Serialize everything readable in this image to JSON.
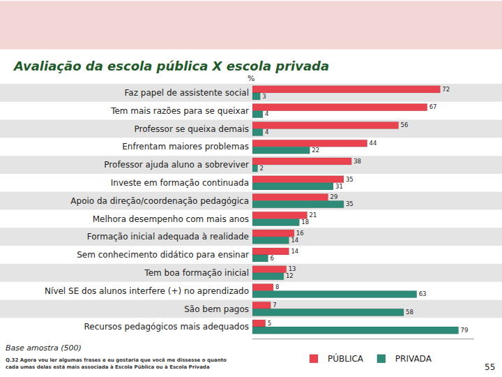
{
  "chart_data": {
    "type": "bar",
    "title": "Avaliação da escola pública X escola privada",
    "unit_label": "%",
    "orientation": "horizontal",
    "data_labels": true,
    "tick_labels": "y",
    "grid": false,
    "legend": "bottom",
    "xlim": [
      0,
      85
    ],
    "xticks": [],
    "categories": [
      "Faz papel de assistente social",
      "Tem mais razões para se queixar",
      "Professor se queixa demais",
      "Enfrentam maiores problemas",
      "Professor ajuda aluno a sobreviver",
      "Investe em formação continuada",
      "Apoio da direção/coordenação pedagógica",
      "Melhora desempenho com mais anos",
      "Formação inicial adequada à realidade",
      "Sem conhecimento didático para ensinar",
      "Tem boa formação inicial",
      "Nível SE dos alunos interfere (+) no aprendizado",
      "São bem pagos",
      "Recursos pedagógicos mais adequados"
    ],
    "series": [
      {
        "name": "PÚBLICA",
        "color": "#e8434f",
        "values": [
          72,
          67,
          56,
          44,
          38,
          35,
          29,
          21,
          16,
          14,
          13,
          8,
          7,
          5
        ]
      },
      {
        "name": "PRIVADA",
        "color": "#2e8b78",
        "values": [
          3,
          4,
          4,
          22,
          2,
          31,
          35,
          18,
          14,
          6,
          12,
          63,
          58,
          79
        ]
      }
    ],
    "base_note": "Base amostra (500)",
    "question_note": [
      "Q.32 Agora vou ler algumas frases e eu gostaria que você me dissesse o quanto",
      "cada umas delas está mais associada à Escola Pública ou à Escola Privada"
    ],
    "page_number": "55"
  }
}
